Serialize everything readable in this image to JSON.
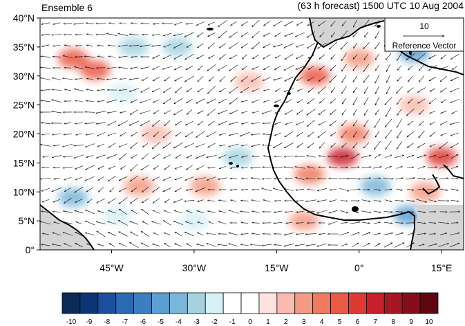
{
  "title": {
    "left": "Ensemble 6",
    "right": "(63 h forecast) 1500 UTC 10 Aug 2004"
  },
  "map": {
    "lon_range": [
      -58,
      19
    ],
    "lat_range": [
      0,
      40
    ],
    "y_ticks": [
      {
        "lat": 40,
        "label": "40°N"
      },
      {
        "lat": 35,
        "label": "35°N"
      },
      {
        "lat": 30,
        "label": "30°N"
      },
      {
        "lat": 25,
        "label": "25°N"
      },
      {
        "lat": 20,
        "label": "20°N"
      },
      {
        "lat": 15,
        "label": "15°N"
      },
      {
        "lat": 10,
        "label": "10°N"
      },
      {
        "lat": 5,
        "label": "5°N"
      },
      {
        "lat": 0,
        "label": "0°"
      }
    ],
    "x_ticks": [
      {
        "lon": -45,
        "label": "45°W"
      },
      {
        "lon": -30,
        "label": "30°W"
      },
      {
        "lon": -15,
        "label": "15°W"
      },
      {
        "lon": 0,
        "label": "0°"
      },
      {
        "lon": 15,
        "label": "15°E"
      }
    ],
    "land_color": "#d4d4d4",
    "coast_color": "#000000"
  },
  "reference_vector": {
    "value": "10",
    "label": "Reference Vector"
  },
  "colorbar": {
    "labels": [
      "-10",
      "-9",
      "-8",
      "-7",
      "-6",
      "-5",
      "-4",
      "-3",
      "-2",
      "-1",
      "0",
      "1",
      "2",
      "3",
      "4",
      "5",
      "6",
      "7",
      "8",
      "9",
      "10"
    ],
    "colors": [
      "#0b2a55",
      "#0d3474",
      "#1b4f9b",
      "#2a69b3",
      "#3b7fc0",
      "#5a9fd0",
      "#7bb7d8",
      "#a4d3df",
      "#d6f0f6",
      "#ffffff",
      "#ffffff",
      "#fde2e0",
      "#f9bcae",
      "#f59a83",
      "#f07a5f",
      "#ea5a45",
      "#dc3a33",
      "#c8202a",
      "#a61624",
      "#840d18",
      "#5e0610"
    ]
  },
  "anomalies": [
    {
      "lon": -52,
      "lat": 33,
      "v": 5
    },
    {
      "lon": -48,
      "lat": 31,
      "v": 5
    },
    {
      "lon": -41,
      "lat": 35,
      "v": -3
    },
    {
      "lon": -33,
      "lat": 35,
      "v": -3
    },
    {
      "lon": -43,
      "lat": 27,
      "v": -2
    },
    {
      "lon": -20,
      "lat": 29,
      "v": 2
    },
    {
      "lon": -37,
      "lat": 20,
      "v": 2
    },
    {
      "lon": -22,
      "lat": 16,
      "v": -3
    },
    {
      "lon": -40,
      "lat": 11,
      "v": 3
    },
    {
      "lon": -28,
      "lat": 11,
      "v": 3
    },
    {
      "lon": -52,
      "lat": 9,
      "v": -4
    },
    {
      "lon": -44,
      "lat": 6,
      "v": -2
    },
    {
      "lon": -30,
      "lat": 5,
      "v": -2
    },
    {
      "lon": -8,
      "lat": 30,
      "v": 5
    },
    {
      "lon": 0,
      "lat": 33,
      "v": 3
    },
    {
      "lon": 10,
      "lat": 34,
      "v": -5
    },
    {
      "lon": -3,
      "lat": 16,
      "v": 7
    },
    {
      "lon": -9,
      "lat": 13,
      "v": 4
    },
    {
      "lon": 3,
      "lat": 11,
      "v": -4
    },
    {
      "lon": 12,
      "lat": 10,
      "v": 3
    },
    {
      "lon": 15,
      "lat": 16,
      "v": 6
    },
    {
      "lon": 9,
      "lat": 6,
      "v": -5
    },
    {
      "lon": -1,
      "lat": 20,
      "v": 4
    },
    {
      "lon": 10,
      "lat": 25,
      "v": 2
    },
    {
      "lon": -10,
      "lat": 5,
      "v": 3
    }
  ]
}
